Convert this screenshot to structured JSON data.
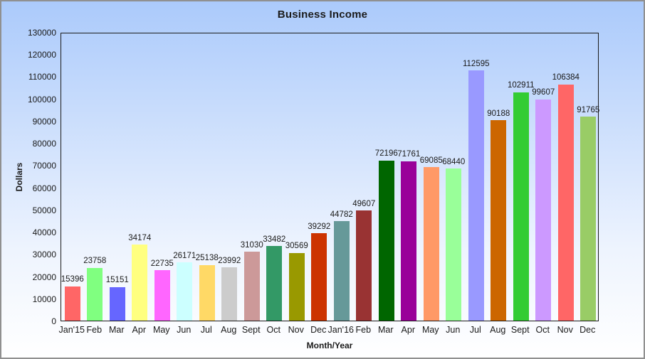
{
  "chart_data": {
    "type": "bar",
    "title": "Business Income",
    "xlabel": "Month/Year",
    "ylabel": "Dollars",
    "ylim": [
      0,
      130000
    ],
    "yticks": [
      0,
      10000,
      20000,
      30000,
      40000,
      50000,
      60000,
      70000,
      80000,
      90000,
      100000,
      110000,
      120000,
      130000
    ],
    "grid": false,
    "legend": false,
    "value_labels_shown": true,
    "background_gradient": {
      "top": "#ABCAFB",
      "bottom": "#FFFFFF"
    },
    "frame_border_color": "#909090",
    "plot_border_color": "#1A1A1A",
    "categories": [
      "Jan'15",
      "Feb",
      "Mar",
      "Apr",
      "May",
      "Jun",
      "Jul",
      "Aug",
      "Sept",
      "Oct",
      "Nov",
      "Dec",
      "Jan'16",
      "Feb",
      "Mar",
      "Apr",
      "May",
      "Jun",
      "Jul",
      "Aug",
      "Sept",
      "Oct",
      "Nov",
      "Dec"
    ],
    "values": [
      15396,
      23758,
      15151,
      34174,
      22735,
      26171,
      25138,
      23992,
      31030,
      33482,
      30569,
      39292,
      44782,
      49607,
      72196,
      71761,
      69085,
      68440,
      112595,
      90188,
      102911,
      99607,
      106384,
      91765
    ],
    "bar_colors": [
      "#FF6666",
      "#80FF80",
      "#6666FF",
      "#FFFF80",
      "#FF66FF",
      "#CCFFFF",
      "#FFD966",
      "#CCCCCC",
      "#CC9999",
      "#339966",
      "#999900",
      "#CC3300",
      "#669999",
      "#993333",
      "#006600",
      "#990099",
      "#FF9966",
      "#99FF99",
      "#9999FF",
      "#CC6600",
      "#33CC33",
      "#CC99FF",
      "#FF6666",
      "#99CC66"
    ]
  }
}
